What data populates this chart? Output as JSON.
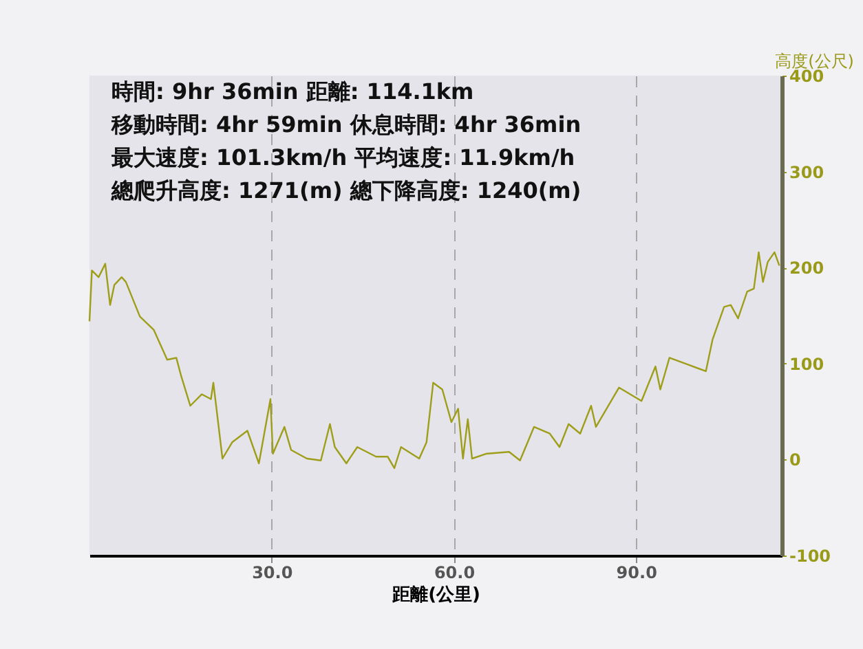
{
  "chart_data": {
    "type": "line",
    "xlabel": "距離(公里)",
    "ylabel": "高度(公尺)",
    "annotations": [
      "時間: 9hr 36min   距離: 114.1km",
      "移動時間: 4hr 59min   休息時間: 4hr 36min",
      "最大速度: 101.3km/h   平均速度: 11.9km/h",
      "總爬升高度: 1271(m)   總下降高度: 1240(m)"
    ],
    "xlim": [
      0,
      114
    ],
    "xticks": [
      {
        "value": 30,
        "label": "30.0"
      },
      {
        "value": 60,
        "label": "60.0"
      },
      {
        "value": 90,
        "label": "90.0"
      }
    ],
    "ylim": [
      -100,
      400
    ],
    "yticks": [
      -100,
      0,
      100,
      200,
      300,
      400
    ],
    "grid": "x",
    "line_style": "solid",
    "series": [
      {
        "color": "#9e9e1a",
        "x": [
          0,
          0.4,
          1.5,
          2.6,
          3.4,
          4.1,
          5.3,
          6.0,
          8.3,
          10.6,
          12.8,
          14.3,
          15.1,
          16.6,
          18.5,
          20.0,
          20.4,
          21.9,
          23.5,
          26.0,
          27.9,
          29.8,
          30.2,
          32.1,
          33.2,
          35.8,
          38.1,
          39.6,
          40.4,
          42.3,
          44.1,
          47.2,
          49.1,
          50.2,
          51.3,
          54.3,
          55.5,
          56.6,
          58.1,
          59.6,
          60.7,
          61.5,
          62.3,
          63.0,
          65.3,
          69.1,
          70.9,
          73.2,
          75.8,
          77.4,
          78.9,
          80.8,
          82.6,
          83.4,
          87.2,
          90.9,
          93.2,
          94.0,
          95.5,
          98.5,
          101.5,
          102.6,
          104.5,
          105.6,
          106.8,
          108.3,
          109.4,
          110.2,
          110.9,
          111.7,
          112.8,
          113.6
        ],
        "values": [
          144,
          197,
          190,
          204,
          161,
          182,
          190,
          185,
          149,
          135,
          104,
          106,
          87,
          56,
          68,
          63,
          80,
          1,
          18,
          30,
          -4,
          63,
          6,
          34,
          10,
          1,
          -1,
          37,
          13,
          -4,
          13,
          3,
          3,
          -9,
          13,
          1,
          18,
          80,
          73,
          39,
          53,
          1,
          42,
          1,
          6,
          8,
          -1,
          34,
          27,
          13,
          37,
          27,
          56,
          34,
          75,
          61,
          97,
          73,
          106,
          99,
          92,
          125,
          159,
          161,
          147,
          175,
          178,
          216,
          185,
          206,
          216,
          202
        ]
      }
    ]
  }
}
